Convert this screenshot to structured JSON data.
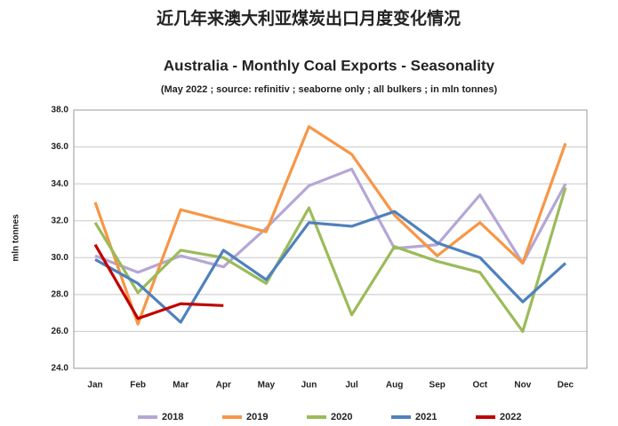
{
  "heading": "近几年来澳大利亚煤炭出口月度变化情况",
  "chart_data": {
    "type": "line",
    "title": "Australia - Monthly Coal Exports - Seasonality",
    "subtitle": "(May 2022 ; source: refinitiv ; seaborne only ; all bulkers ; in mln tonnes)",
    "y_label": "mln tonnes",
    "categories": [
      "Jan",
      "Feb",
      "Mar",
      "Apr",
      "May",
      "Jun",
      "Jul",
      "Aug",
      "Sep",
      "Oct",
      "Nov",
      "Dec"
    ],
    "series": [
      {
        "name": "2018",
        "color": "#b4a7d6",
        "values": [
          30.1,
          29.2,
          30.1,
          29.5,
          31.6,
          33.9,
          34.8,
          30.5,
          30.7,
          33.4,
          29.7,
          34.0
        ]
      },
      {
        "name": "2019",
        "color": "#f79646",
        "values": [
          33.0,
          26.4,
          32.6,
          32.0,
          31.4,
          37.1,
          35.6,
          32.3,
          30.1,
          31.9,
          29.7,
          36.2
        ]
      },
      {
        "name": "2020",
        "color": "#9bbb59",
        "values": [
          31.9,
          28.1,
          30.4,
          30.0,
          28.6,
          32.7,
          26.9,
          30.6,
          29.8,
          29.2,
          26.0,
          33.8
        ]
      },
      {
        "name": "2021",
        "color": "#4f81bd",
        "values": [
          29.9,
          28.6,
          26.5,
          30.4,
          28.8,
          31.9,
          31.7,
          32.5,
          30.8,
          30.0,
          27.6,
          29.7
        ]
      },
      {
        "name": "2022",
        "color": "#c00000",
        "values": [
          30.7,
          26.7,
          27.5,
          27.4,
          null,
          null,
          null,
          null,
          null,
          null,
          null,
          null
        ]
      }
    ],
    "ylim": [
      24,
      38
    ],
    "yticks": [
      {
        "value": 24,
        "label": "24.0"
      },
      {
        "value": 26,
        "label": "26.0"
      },
      {
        "value": 28,
        "label": "28.0"
      },
      {
        "value": 30,
        "label": "30.0"
      },
      {
        "value": 32,
        "label": "32.0"
      },
      {
        "value": 34,
        "label": "34.0"
      },
      {
        "value": 36,
        "label": "36.0"
      },
      {
        "value": 38,
        "label": "38.0"
      }
    ],
    "grid": true,
    "legend": "bottom"
  }
}
